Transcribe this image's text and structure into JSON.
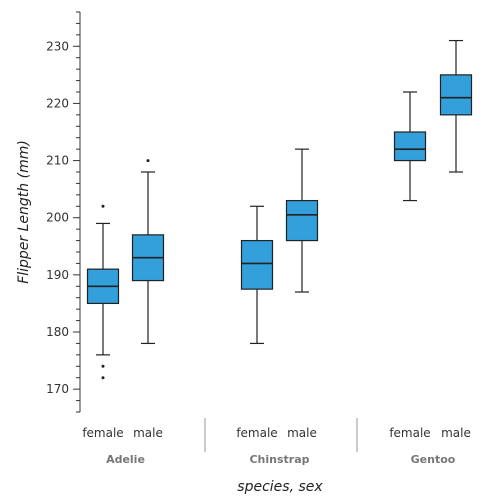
{
  "chart_data": {
    "type": "box",
    "xlabel": "species, sex",
    "ylabel": "Flipper Length (mm)",
    "ylim": [
      166,
      236
    ],
    "yticks": [
      170,
      180,
      190,
      200,
      210,
      220,
      230
    ],
    "box_color": "#33A0DB",
    "groups": [
      {
        "name": "Adelie",
        "boxes": [
          {
            "label": "female",
            "whisker_low": 176,
            "q1": 185,
            "median": 188,
            "q3": 191,
            "whisker_high": 199,
            "outliers": [
              202,
              172,
              174
            ]
          },
          {
            "label": "male",
            "whisker_low": 178,
            "q1": 189,
            "median": 193,
            "q3": 197,
            "whisker_high": 208,
            "outliers": [
              210
            ]
          }
        ]
      },
      {
        "name": "Chinstrap",
        "boxes": [
          {
            "label": "female",
            "whisker_low": 178,
            "q1": 187.5,
            "median": 192,
            "q3": 196,
            "whisker_high": 202,
            "outliers": []
          },
          {
            "label": "male",
            "whisker_low": 187,
            "q1": 196,
            "median": 200.5,
            "q3": 203,
            "whisker_high": 212,
            "outliers": []
          }
        ]
      },
      {
        "name": "Gentoo",
        "boxes": [
          {
            "label": "female",
            "whisker_low": 203,
            "q1": 210,
            "median": 212,
            "q3": 215,
            "whisker_high": 222,
            "outliers": []
          },
          {
            "label": "male",
            "whisker_low": 208,
            "q1": 218,
            "median": 221,
            "q3": 225,
            "whisker_high": 231,
            "outliers": []
          }
        ]
      }
    ]
  }
}
